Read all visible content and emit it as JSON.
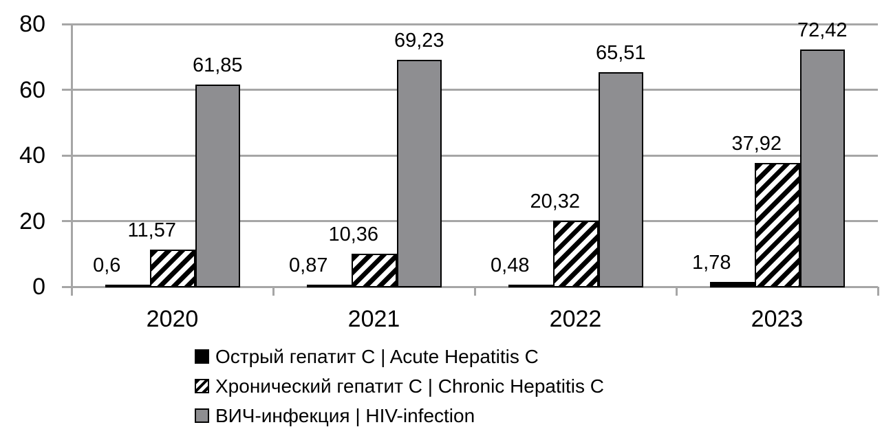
{
  "chart_data": {
    "type": "bar",
    "title": "",
    "categories": [
      "2020",
      "2021",
      "2022",
      "2023"
    ],
    "series": [
      {
        "name": "Острый гепатит C | Acute Hepatitis C",
        "key": "acute-hepatitis-c",
        "style": "solid-black",
        "values": [
          0.6,
          0.87,
          0.48,
          1.78
        ],
        "labels": [
          "0,6",
          "0,87",
          "0,48",
          "1,78"
        ]
      },
      {
        "name": "Хронический гепатит C | Chronic Hepatitis C",
        "key": "chronic-hepatitis-c",
        "style": "diagonal-hatch",
        "values": [
          11.57,
          10.36,
          20.32,
          37.92
        ],
        "labels": [
          "11,57",
          "10,36",
          "20,32",
          "37,92"
        ]
      },
      {
        "name": "ВИЧ-инфекция | HIV-infection",
        "key": "hiv-infection",
        "style": "solid-gray",
        "values": [
          61.85,
          69.23,
          65.51,
          72.42
        ],
        "labels": [
          "61,85",
          "69,23",
          "65,51",
          "72,42"
        ]
      }
    ],
    "ylim": [
      0,
      80
    ],
    "yticks": [
      0,
      20,
      40,
      60,
      80
    ],
    "ytick_labels": [
      "0",
      "20",
      "40",
      "60",
      "80"
    ],
    "grid": true,
    "legend_position": "bottom-left",
    "decimal_separator": ",",
    "colors": {
      "background": "#ffffff",
      "gridline": "#a6a6a6",
      "axis": "#a6a6a6",
      "bar_border": "#000000",
      "acute_fill": "#000000",
      "hatch_stripe": "#000000",
      "hatch_background": "#ffffff",
      "hiv_fill": "#8e8e91",
      "text": "#000000"
    }
  }
}
